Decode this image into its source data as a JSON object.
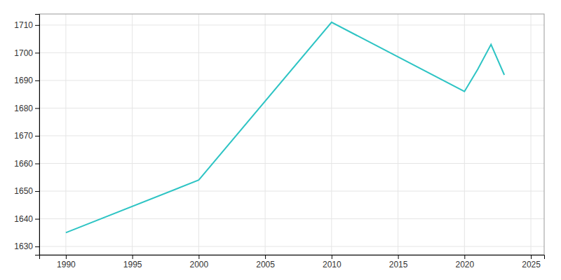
{
  "chart_data": {
    "type": "line",
    "x": [
      1990,
      2000,
      2010,
      2020,
      2021,
      2022,
      2023
    ],
    "values": [
      1635,
      1654,
      1711,
      1686,
      1694,
      1703,
      1692
    ],
    "color": "#2EC4C4",
    "xlim": [
      1988,
      2026
    ],
    "ylim": [
      1627,
      1714
    ],
    "xticks": [
      1990,
      1995,
      2000,
      2005,
      2010,
      2015,
      2020,
      2025
    ],
    "yticks": [
      1630,
      1640,
      1650,
      1660,
      1670,
      1680,
      1690,
      1700,
      1710
    ],
    "grid": true
  }
}
